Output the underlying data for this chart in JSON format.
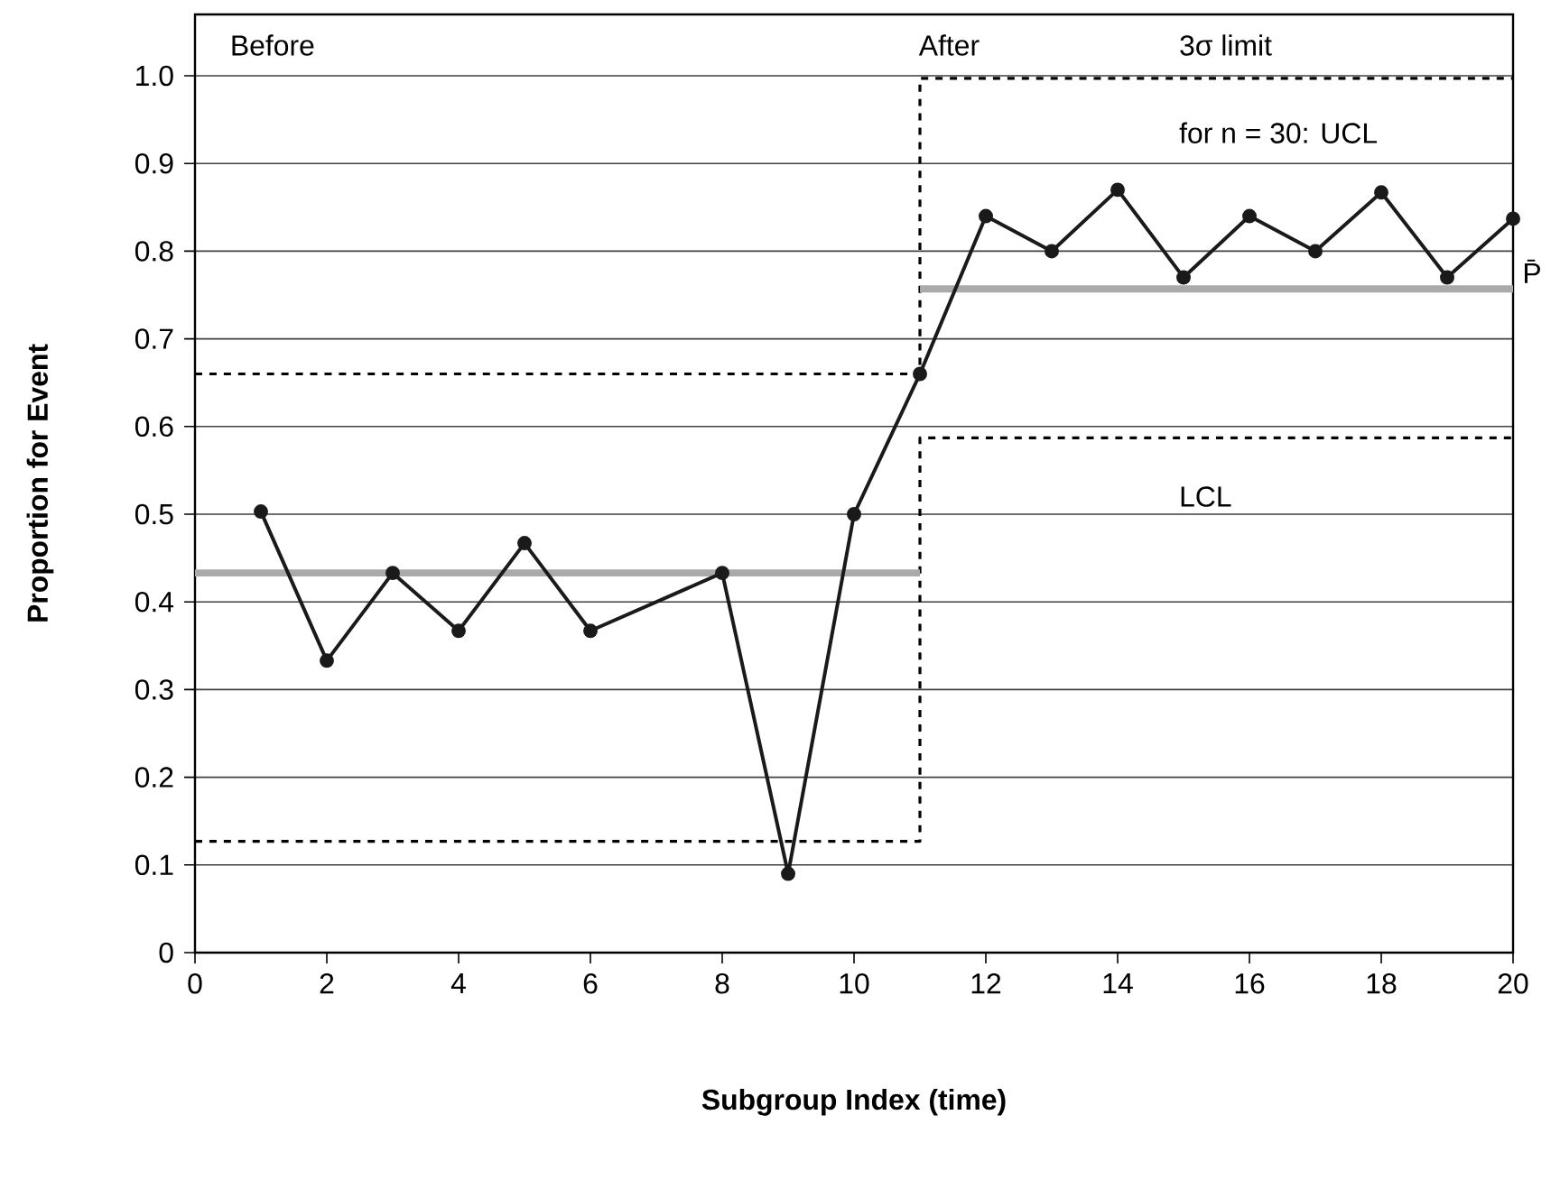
{
  "chart_data": {
    "type": "line",
    "xlabel": "Subgroup Index (time)",
    "ylabel": "Proportion for Event",
    "xlim": [
      0,
      20
    ],
    "ylim": [
      0,
      1.07
    ],
    "xticks": [
      0,
      2,
      4,
      6,
      8,
      10,
      12,
      14,
      16,
      18,
      20
    ],
    "yticks": [
      0,
      0.1,
      0.2,
      0.3,
      0.4,
      0.5,
      0.6,
      0.7,
      0.8,
      0.9,
      {
        "value": 1,
        "label": "1.0"
      }
    ],
    "grid": "y",
    "series": [
      {
        "color": "#000000",
        "marker": "none",
        "line_style": "dashed",
        "x": [
          0,
          11,
          11,
          20
        ],
        "values": [
          0.66,
          0.66,
          0.997,
          0.997
        ]
      },
      {
        "color": "#000000",
        "marker": "none",
        "line_style": "dashed",
        "x": [
          0,
          11,
          11,
          20
        ],
        "values": [
          0.127,
          0.127,
          0.587,
          0.587
        ]
      },
      {
        "color": "#aaaaaa",
        "marker": "none",
        "line_style": "solid",
        "x": [
          0,
          11
        ],
        "values": [
          0.433,
          0.433
        ]
      },
      {
        "color": "#aaaaaa",
        "marker": "none",
        "line_style": "solid",
        "x": [
          11,
          20
        ],
        "values": [
          0.757,
          0.757
        ]
      },
      {
        "color": "#1a1a1a",
        "marker": "circle",
        "line_style": "solid",
        "x": [
          1,
          2,
          3,
          4,
          5,
          6,
          8,
          9,
          10,
          11,
          12,
          13,
          14,
          15,
          16,
          17,
          18,
          19,
          20
        ],
        "values": [
          0.503,
          0.333,
          0.433,
          0.367,
          0.467,
          0.367,
          0.433,
          0.09,
          0.5,
          0.66,
          0.84,
          0.8,
          0.87,
          0.77,
          0.84,
          0.8,
          0.867,
          0.77,
          0.837
        ]
      }
    ],
    "annotations": [
      "Before",
      "After",
      "3σ limit",
      "for n = 30: UCL",
      "LCL",
      {
        "text": "P̄",
        "x": 20,
        "y": 0.757
      }
    ]
  }
}
